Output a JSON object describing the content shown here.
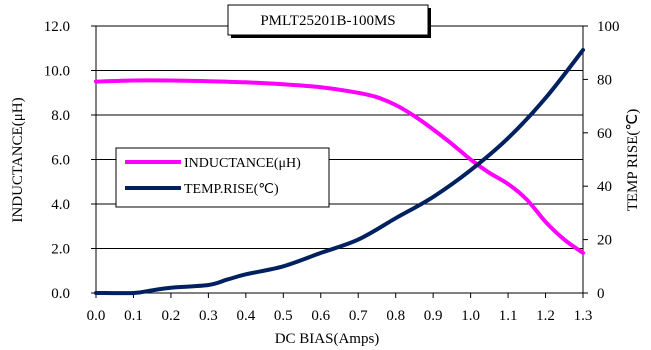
{
  "chart_data": {
    "type": "line",
    "title": "PMLT25201B-100MS",
    "xlabel": "DC BIAS(Amps)",
    "ylabel_left": "INDUCTANCE(μH)",
    "ylabel_right": "TEMP RISE(℃)",
    "xlim": [
      0,
      1.3
    ],
    "ylim_left": [
      0,
      12
    ],
    "ylim_right": [
      0,
      100
    ],
    "x_ticks": [
      "0.0",
      "0.1",
      "0.2",
      "0.3",
      "0.4",
      "0.5",
      "0.6",
      "0.7",
      "0.8",
      "0.9",
      "1.0",
      "1.1",
      "1.2",
      "1.3"
    ],
    "y_left_ticks": [
      "0.0",
      "2.0",
      "4.0",
      "6.0",
      "8.0",
      "10.0",
      "12.0"
    ],
    "y_right_ticks": [
      "0",
      "20",
      "40",
      "60",
      "80",
      "100"
    ],
    "grid": "horizontal",
    "legend_position": "left-middle",
    "series": [
      {
        "name": "INDUCTANCE(μH)",
        "axis": "left",
        "color": "#ff00ff",
        "x": [
          0.0,
          0.1,
          0.2,
          0.3,
          0.4,
          0.5,
          0.6,
          0.7,
          0.75,
          0.8,
          0.85,
          0.9,
          0.95,
          1.0,
          1.05,
          1.1,
          1.15,
          1.2,
          1.25,
          1.3
        ],
        "y": [
          9.5,
          9.55,
          9.55,
          9.52,
          9.47,
          9.38,
          9.25,
          9.0,
          8.8,
          8.45,
          7.95,
          7.35,
          6.7,
          6.0,
          5.4,
          4.9,
          4.2,
          3.2,
          2.4,
          1.8
        ]
      },
      {
        "name": "TEMP.RISE(℃)",
        "axis": "right",
        "color": "#002060",
        "x": [
          0.0,
          0.1,
          0.15,
          0.2,
          0.3,
          0.35,
          0.4,
          0.5,
          0.6,
          0.7,
          0.8,
          0.9,
          1.0,
          1.1,
          1.2,
          1.3
        ],
        "y": [
          0,
          0,
          1,
          2,
          3,
          5,
          7,
          10,
          15,
          20,
          28,
          36,
          46,
          58,
          73,
          91
        ]
      }
    ]
  }
}
